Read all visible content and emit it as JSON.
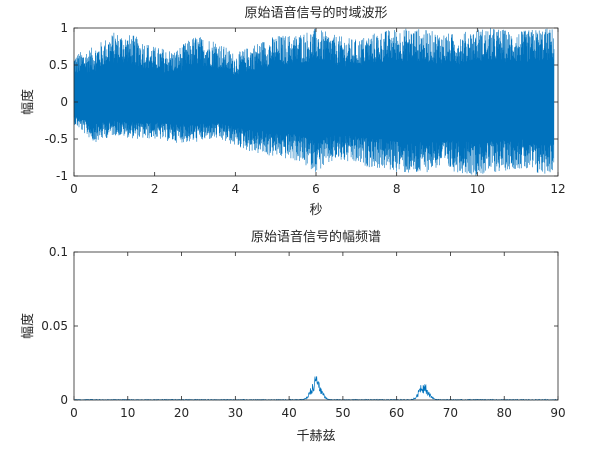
{
  "chart_data": [
    {
      "type": "line",
      "title": "原始语音信号的时域波形",
      "xlabel": "秒",
      "ylabel": "幅度",
      "xlim": [
        0,
        12
      ],
      "ylim": [
        -1,
        1
      ],
      "xticks": [
        "0",
        "2",
        "4",
        "6",
        "8",
        "10",
        "12"
      ],
      "yticks": [
        "-1",
        "-0.5",
        "0",
        "0.5",
        "1"
      ],
      "grid": false,
      "line_color": "#0072BD",
      "envelope": {
        "t": [
          0,
          0.5,
          1,
          1.5,
          2,
          2.5,
          3,
          3.5,
          4,
          4.5,
          5,
          5.5,
          6,
          6.5,
          7,
          7.5,
          8,
          8.5,
          9,
          9.5,
          10,
          10.5,
          11,
          11.5,
          11.9
        ],
        "upper": [
          0.65,
          0.75,
          0.95,
          0.9,
          0.75,
          0.7,
          0.9,
          0.85,
          0.65,
          0.8,
          0.9,
          0.92,
          1.0,
          0.9,
          0.85,
          0.95,
          1.0,
          1.0,
          0.95,
          0.92,
          1.0,
          1.0,
          0.95,
          1.0,
          1.0
        ],
        "lower": [
          -0.3,
          -0.55,
          -0.45,
          -0.5,
          -0.5,
          -0.55,
          -0.55,
          -0.5,
          -0.6,
          -0.7,
          -0.75,
          -0.8,
          -0.95,
          -0.8,
          -0.85,
          -0.9,
          -0.95,
          -1.0,
          -0.9,
          -0.95,
          -1.0,
          -0.95,
          -0.9,
          -1.0,
          -0.95
        ]
      }
    },
    {
      "type": "line",
      "title": "原始语音信号的幅频谱",
      "xlabel": "千赫兹",
      "ylabel": "幅度",
      "xlim": [
        0,
        90
      ],
      "ylim": [
        0,
        0.1
      ],
      "xticks": [
        "0",
        "10",
        "20",
        "30",
        "40",
        "50",
        "60",
        "70",
        "80",
        "90"
      ],
      "yticks": [
        "0",
        "0.05",
        "0.1"
      ],
      "grid": false,
      "line_color": "#0072BD",
      "peaks": [
        {
          "center": 45,
          "height": 0.017,
          "width": 1.2
        },
        {
          "center": 65,
          "height": 0.012,
          "width": 1.2
        }
      ]
    }
  ]
}
